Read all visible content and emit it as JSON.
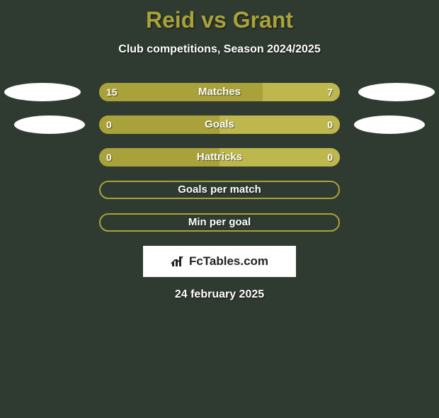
{
  "background_color": "#2f3a30",
  "title": {
    "text": "Reid vs Grant",
    "color": "#a9a23a",
    "fontsize": 32
  },
  "subtitle": {
    "text": "Club competitions, Season 2024/2025",
    "color": "#ffffff",
    "fontsize": 16
  },
  "bar": {
    "track_color": "#a9a23a",
    "border_color": "#a9a23a",
    "left_fill_color": "#a9a23a",
    "right_fill_color": "#bdb74e",
    "track_width": 340,
    "track_height": 26,
    "radius": 13,
    "label_color": "#ffffff",
    "value_color": "#ffffff",
    "label_fontsize": 15,
    "value_fontsize": 14
  },
  "rows": [
    {
      "label": "Matches",
      "left": "15",
      "right": "7",
      "left_pct": 68,
      "right_pct": 32,
      "show_values": true,
      "ellipse_left": "l1",
      "ellipse_right": "r1"
    },
    {
      "label": "Goals",
      "left": "0",
      "right": "0",
      "left_pct": 50,
      "right_pct": 50,
      "show_values": true,
      "ellipse_left": "l2",
      "ellipse_right": "r2"
    },
    {
      "label": "Hattricks",
      "left": "0",
      "right": "0",
      "left_pct": 50,
      "right_pct": 50,
      "show_values": true,
      "ellipse_left": null,
      "ellipse_right": null
    },
    {
      "label": "Goals per match",
      "left": "",
      "right": "",
      "left_pct": 0,
      "right_pct": 0,
      "show_values": false,
      "ellipse_left": null,
      "ellipse_right": null
    },
    {
      "label": "Min per goal",
      "left": "",
      "right": "",
      "left_pct": 0,
      "right_pct": 0,
      "show_values": false,
      "ellipse_left": null,
      "ellipse_right": null
    }
  ],
  "ellipse_color": "#ffffff",
  "logo": {
    "text": "FcTables.com",
    "box_bg": "#ffffff",
    "text_color": "#222222",
    "icon_color": "#222222"
  },
  "date": {
    "text": "24 february 2025",
    "color": "#ffffff",
    "fontsize": 16
  }
}
